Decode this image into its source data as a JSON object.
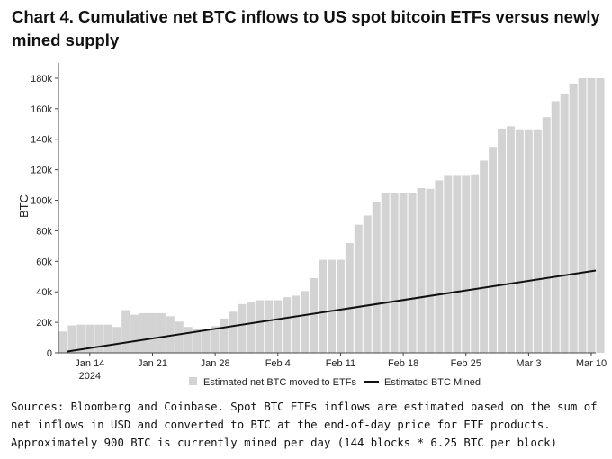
{
  "title": "Chart 4. Cumulative net BTC inflows to US spot bitcoin ETFs versus newly mined supply",
  "caption": "Sources: Bloomberg and Coinbase. Spot BTC ETFs inflows are estimated based on the sum of net inflows in USD and converted to BTC at the end-of-day price for ETF products. Approximately 900 BTC is currently mined per day (144 blocks * 6.25 BTC per block)",
  "colors": {
    "bar": "#d3d3d3",
    "line": "#111111",
    "axis": "#444444"
  },
  "chart_data": {
    "type": "bar",
    "ylabel": "BTC",
    "ylim": [
      0,
      190000
    ],
    "yticks": [
      0,
      20000,
      40000,
      60000,
      80000,
      100000,
      120000,
      140000,
      160000,
      180000
    ],
    "ytick_labels": [
      "0",
      "20k",
      "40k",
      "60k",
      "80k",
      "100k",
      "120k",
      "140k",
      "160k",
      "180k"
    ],
    "x_day_range": [
      11,
      70
    ],
    "xticks": [
      {
        "day": 14,
        "label": "Jan 14",
        "sublabel": "2024"
      },
      {
        "day": 21,
        "label": "Jan 21",
        "sublabel": ""
      },
      {
        "day": 28,
        "label": "Jan 28",
        "sublabel": ""
      },
      {
        "day": 35,
        "label": "Feb 4",
        "sublabel": ""
      },
      {
        "day": 42,
        "label": "Feb 11",
        "sublabel": ""
      },
      {
        "day": 49,
        "label": "Feb 18",
        "sublabel": ""
      },
      {
        "day": 56,
        "label": "Feb 25",
        "sublabel": ""
      },
      {
        "day": 63,
        "label": "Mar 3",
        "sublabel": ""
      },
      {
        "day": 70,
        "label": "Mar 10",
        "sublabel": ""
      }
    ],
    "series": [
      {
        "name": "Estimated net BTC moved to ETFs",
        "kind": "bar",
        "start_day": 11,
        "values": [
          14000,
          18000,
          18500,
          18500,
          18500,
          18500,
          17000,
          28000,
          25000,
          26000,
          26000,
          26000,
          24000,
          20500,
          17000,
          15500,
          14500,
          17500,
          22500,
          27000,
          32000,
          33000,
          34500,
          34500,
          34500,
          36500,
          37500,
          40500,
          49000,
          61000,
          61000,
          61000,
          72000,
          84000,
          90000,
          99000,
          105000,
          105000,
          105000,
          105000,
          108000,
          107500,
          113000,
          116000,
          116000,
          116000,
          117000,
          126000,
          135000,
          147000,
          148500,
          146500,
          146500,
          146500,
          154500,
          165000,
          170000,
          176500,
          180000,
          180000,
          180000
        ]
      },
      {
        "name": "Estimated BTC Mined",
        "kind": "line",
        "points": [
          [
            11.5,
            900
          ],
          [
            70.5,
            54000
          ]
        ]
      }
    ]
  }
}
